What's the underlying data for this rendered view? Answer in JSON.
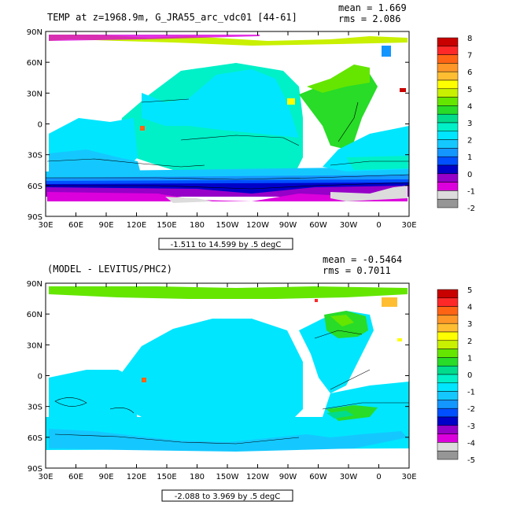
{
  "chart_data": [
    {
      "type": "heatmap",
      "title": "TEMP at z=1968.9m, G_JRA55_arc_vdc01 [44-61]",
      "stats": {
        "mean": "mean = 1.669",
        "rms": "rms = 2.086"
      },
      "contour_info": "-1.511 to 14.599 by .5 degC",
      "x_ticks": [
        "30E",
        "60E",
        "90E",
        "120E",
        "150E",
        "180",
        "150W",
        "120W",
        "90W",
        "60W",
        "30W",
        "0",
        "30E"
      ],
      "y_ticks": [
        "90N",
        "60N",
        "30N",
        "0",
        "30S",
        "60S",
        "90S"
      ],
      "colorbar": {
        "labels": [
          "8",
          "7",
          "6",
          "5",
          "4",
          "3",
          "2",
          "1",
          "0",
          "-1",
          "-2"
        ],
        "colors": [
          "#c80000",
          "#ff2828",
          "#ff6414",
          "#ff9628",
          "#ffbe32",
          "#ffff00",
          "#c8f000",
          "#64e600",
          "#28dc28",
          "#00dc8c",
          "#00f0c8",
          "#00e6ff",
          "#14c8ff",
          "#1496ff",
          "#0050ff",
          "#0000c8",
          "#9600c8",
          "#dc00dc",
          "#dcdcdc",
          "#969696"
        ]
      }
    },
    {
      "type": "heatmap",
      "title": "(MODEL - LEVITUS/PHC2)",
      "stats": {
        "mean": "mean = -0.5464",
        "rms": "rms = 0.7011"
      },
      "contour_info": "-2.088 to 3.969 by .5 degC",
      "x_ticks": [
        "30E",
        "60E",
        "90E",
        "120E",
        "150E",
        "180",
        "150W",
        "120W",
        "90W",
        "60W",
        "30W",
        "0",
        "30E"
      ],
      "y_ticks": [
        "90N",
        "60N",
        "30N",
        "0",
        "30S",
        "60S",
        "90S"
      ],
      "colorbar": {
        "labels": [
          "5",
          "4",
          "3",
          "2",
          "1",
          "0",
          "-1",
          "-2",
          "-3",
          "-4",
          "-5"
        ],
        "colors": [
          "#c80000",
          "#ff2828",
          "#ff6414",
          "#ff9628",
          "#ffbe32",
          "#ffff00",
          "#c8f000",
          "#64e600",
          "#28dc28",
          "#00dc8c",
          "#00f0c8",
          "#00e6ff",
          "#14c8ff",
          "#1496ff",
          "#0050ff",
          "#0000c8",
          "#9600c8",
          "#dc00dc",
          "#dcdcdc",
          "#969696"
        ]
      }
    }
  ]
}
